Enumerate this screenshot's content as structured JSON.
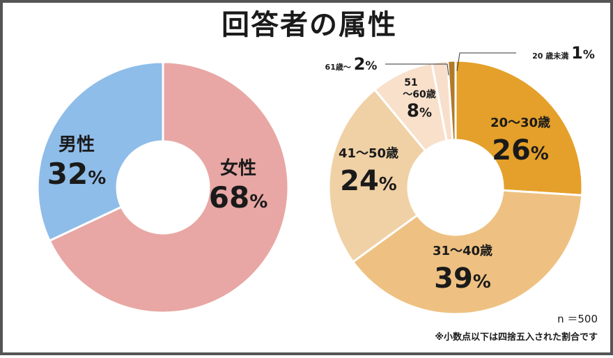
{
  "title": "回答者の属性",
  "notes": {
    "sample": "n ＝500",
    "rounding": "※小数点以下は四捨五入された割合です"
  },
  "chart_data": [
    {
      "type": "pie",
      "donut": true,
      "slices": [
        {
          "label": "女性",
          "value": 68,
          "value_text": "68",
          "color": "#e8a7a4"
        },
        {
          "label": "男性",
          "value": 32,
          "value_text": "32",
          "color": "#8fbde9"
        }
      ]
    },
    {
      "type": "pie",
      "donut": true,
      "slices": [
        {
          "label": "20～30歳",
          "value": 26,
          "value_text": "26",
          "color": "#e4a02a"
        },
        {
          "label": "31～40歳",
          "value": 39,
          "value_text": "39",
          "color": "#eec182"
        },
        {
          "label": "41～50歳",
          "value": 24,
          "value_text": "24",
          "color": "#f0d1a5"
        },
        {
          "label": "51～60歳",
          "value": 8,
          "value_text": "8",
          "color": "#f8e0cb"
        },
        {
          "label": "61歳～",
          "value": 2,
          "value_text": "2",
          "color": "#f7dfcc"
        },
        {
          "label": "20 歳未満",
          "value": 1,
          "value_text": "1",
          "color": "#b07a2a"
        }
      ]
    }
  ]
}
